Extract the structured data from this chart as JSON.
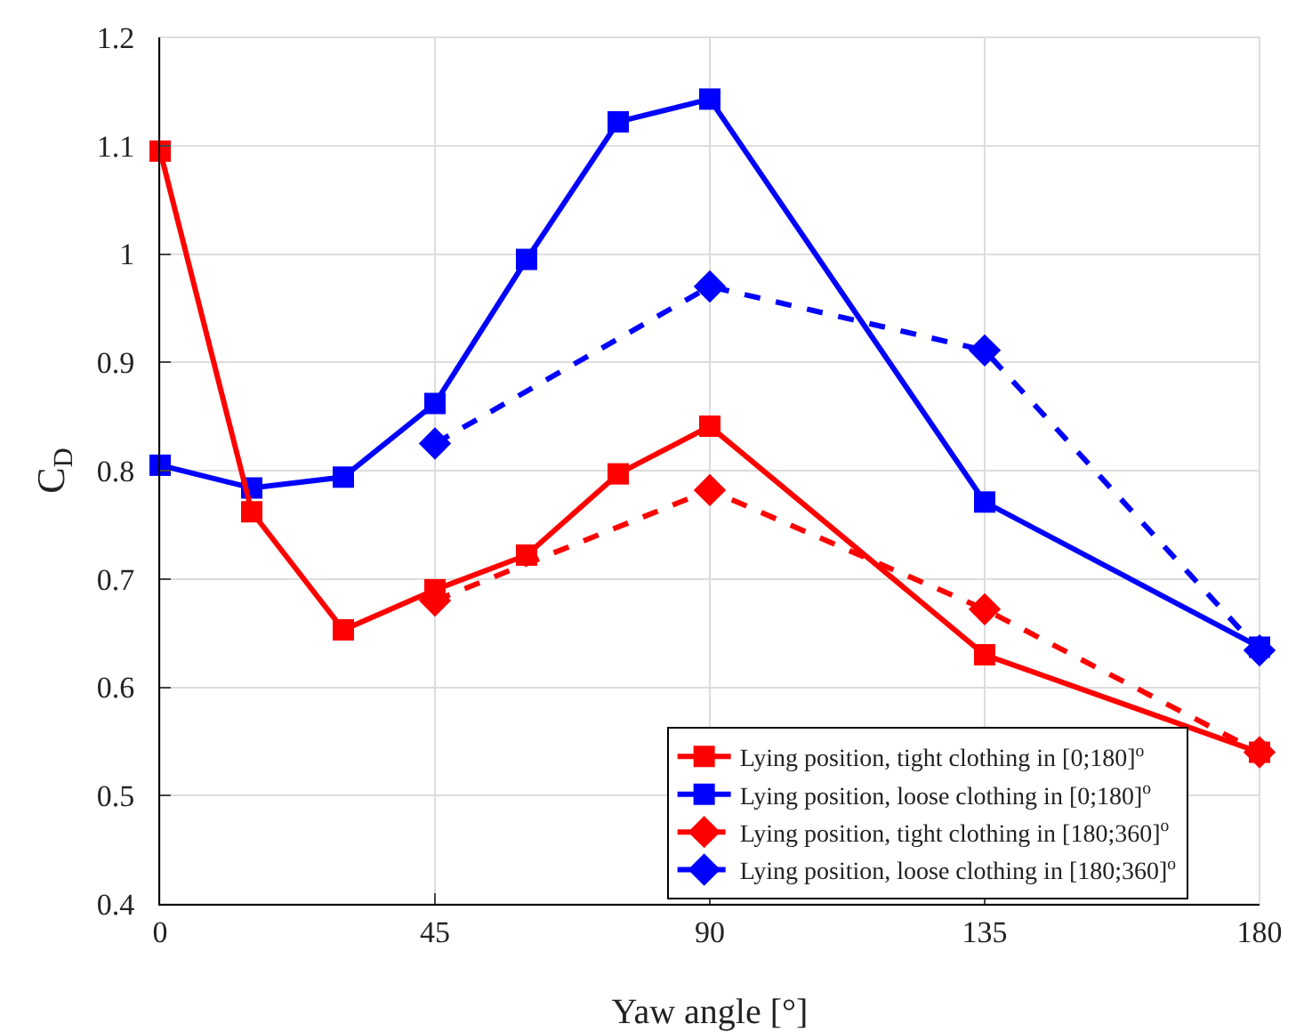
{
  "chart_data": {
    "type": "line",
    "xlabel": "Yaw angle [°]",
    "ylabel": "C$_{D}$",
    "xlim": [
      0,
      180
    ],
    "xticks": [
      0,
      45,
      90,
      135,
      180
    ],
    "ylim": [
      0.4,
      1.2
    ],
    "yticks": [
      0.4,
      0.5,
      0.6,
      0.7,
      0.8,
      0.9,
      1,
      1.1,
      1.2
    ],
    "grid": true,
    "legend": "bottom right",
    "series": [
      {
        "name": "Lying position, tight clothing in [0;180]$^{o}$",
        "color": "#ff0000",
        "marker": "square",
        "line_style": "solid",
        "x": [
          0,
          15,
          30,
          45,
          60,
          75,
          90,
          135,
          180
        ],
        "values": [
          1.095,
          0.762,
          0.653,
          0.69,
          0.722,
          0.797,
          0.841,
          0.63,
          0.54
        ]
      },
      {
        "name": "Lying position, loose clothing in [0;180]$^{o}$",
        "color": "#0000ff",
        "marker": "square",
        "line_style": "solid",
        "x": [
          0,
          15,
          30,
          45,
          60,
          75,
          90,
          135,
          180
        ],
        "values": [
          0.805,
          0.784,
          0.794,
          0.862,
          0.995,
          1.122,
          1.143,
          0.771,
          0.637
        ]
      },
      {
        "name": "Lying position, tight clothing in [180;360]$^{o}$",
        "color": "#ff0000",
        "marker": "diamond",
        "line_style": "dashed",
        "x": [
          45,
          90,
          135,
          180
        ],
        "values": [
          0.68,
          0.782,
          0.672,
          0.54
        ]
      },
      {
        "name": "Lying position, loose clothing in [180;360]$^{o}$",
        "color": "#0000ff",
        "marker": "diamond",
        "line_style": "dashed",
        "x": [
          45,
          90,
          135,
          180
        ],
        "values": [
          0.825,
          0.97,
          0.911,
          0.634
        ]
      }
    ]
  }
}
